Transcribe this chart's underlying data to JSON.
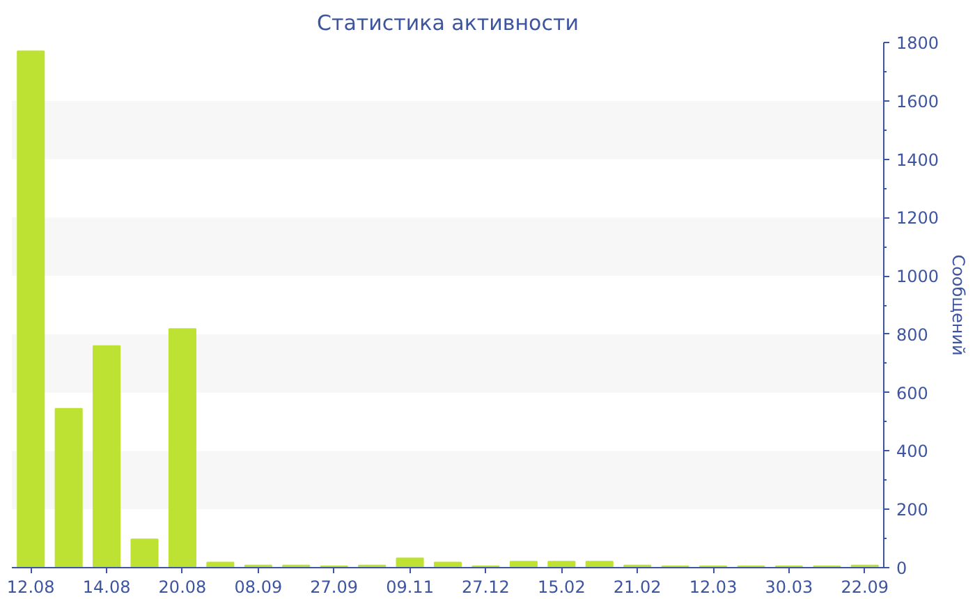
{
  "chart_data": {
    "type": "bar",
    "title": "Статистика активности",
    "ylabel": "Сообщений",
    "categories": [
      "12.08",
      null,
      "14.08",
      null,
      "20.08",
      null,
      "08.09",
      null,
      "27.09",
      null,
      "09.11",
      null,
      "27.12",
      null,
      "15.02",
      null,
      "21.02",
      null,
      "12.03",
      null,
      "30.03",
      null,
      "22.09"
    ],
    "values": [
      1770,
      545,
      760,
      97,
      818,
      18,
      8,
      8,
      5,
      8,
      32,
      18,
      5,
      21,
      21,
      21,
      8,
      5,
      5,
      5,
      5,
      5,
      8
    ],
    "color": "#bde233",
    "ylim": [
      0,
      1800
    ],
    "yticks": [
      0,
      200,
      400,
      600,
      800,
      1000,
      1200,
      1400,
      1600,
      1800
    ],
    "grid": false
  }
}
